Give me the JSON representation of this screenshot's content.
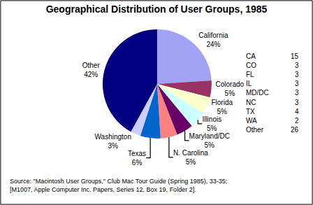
{
  "chart_data": {
    "type": "pie",
    "title": "Geographical Distribution of User Groups, 1985",
    "categories": [
      "California",
      "Colorado",
      "Florida",
      "Illinois",
      "Maryland/DC",
      "N. Carolina",
      "Texas",
      "Washington",
      "Other"
    ],
    "values": [
      24,
      5,
      5,
      5,
      5,
      5,
      6,
      3,
      42
    ],
    "value_labels": [
      "24%",
      "5%",
      "5%",
      "5%",
      "5%",
      "5%",
      "6%",
      "3%",
      "42%"
    ],
    "colors": [
      "#a3a3f5",
      "#993366",
      "#ffffcc",
      "#ccffff",
      "#660066",
      "#ff8080",
      "#0066cc",
      "#ccccff",
      "#000080"
    ],
    "data_labels": true,
    "table": {
      "rows": [
        [
          "CA",
          15
        ],
        [
          "CO",
          3
        ],
        [
          "FL",
          3
        ],
        [
          "IL",
          3
        ],
        [
          "MD/DC",
          3
        ],
        [
          "NC",
          3
        ],
        [
          "TX",
          4
        ],
        [
          "WA",
          2
        ],
        [
          "Other",
          26
        ]
      ]
    },
    "source": [
      "Source: \"Macintosh User Groups,\" Club Mac Tour Guide (Spring 1985), 33-35;",
      "[M1007, Apple Computer Inc. Papers, Series 12, Box 19, Folder 2]."
    ]
  }
}
